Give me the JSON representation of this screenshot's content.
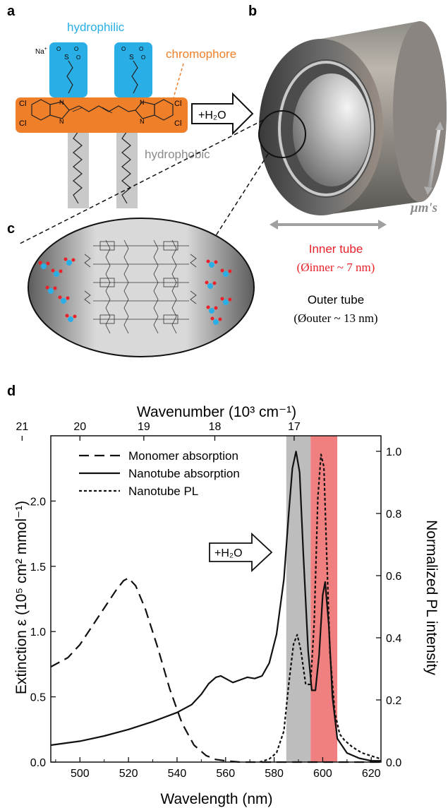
{
  "panels": {
    "a": "a",
    "b": "b",
    "c": "c",
    "d": "d"
  },
  "panel_a": {
    "hydrophilic": "hydrophilic",
    "chromophore": "chromophore",
    "hydrophobic": "hydrophobic",
    "na": "Na",
    "na_sup": "+",
    "cl": "Cl",
    "n": "N",
    "s": "S",
    "o": "O"
  },
  "arrow_label": "+H₂O",
  "panel_b": {
    "length_unit": "μm's",
    "inner_tube": "Inner tube",
    "inner_diam": "(Øinner ~ 7 nm)",
    "outer_tube": "Outer tube",
    "outer_diam": "(Øouter ~ 13 nm)"
  },
  "colors": {
    "hydrophilic": "#2aaee6",
    "chromophore": "#f07f2a",
    "hydrophobic": "#c9c9c9",
    "inner_red": "#e8212a",
    "gray_band": "#bdbdbd",
    "red_band": "#f08080"
  },
  "chart_data": {
    "type": "line",
    "xlabel": "Wavelength (nm)",
    "top_label": "Wavenumber (10³ cm⁻¹)",
    "ylabel": "Extinction ε (10⁵ cm² mmol⁻¹)",
    "y2label": "Normalized PL intensity",
    "xlim": [
      488,
      624
    ],
    "ylim": [
      0,
      2.5
    ],
    "y2lim": [
      0,
      1.05
    ],
    "x_ticks": [
      500,
      520,
      540,
      560,
      580,
      600,
      620
    ],
    "y_ticks": [
      0.0,
      0.5,
      1.0,
      1.5,
      2.0
    ],
    "y_tick_labels": [
      "0.0",
      "0.5",
      "1.0",
      "1.5",
      "2.0"
    ],
    "y2_ticks": [
      0.0,
      0.2,
      0.4,
      0.6,
      0.8,
      1.0
    ],
    "y2_tick_labels": [
      "0.0",
      "0.2",
      "0.4",
      "0.6",
      "0.8",
      "1.0"
    ],
    "top_ticks": [
      21,
      20,
      19,
      18,
      17
    ],
    "bands": [
      {
        "from": 585,
        "to": 595,
        "color": "#bdbdbd"
      },
      {
        "from": 595,
        "to": 606,
        "color": "#f08080"
      }
    ],
    "series": [
      {
        "name": "Monomer absorption",
        "style": "dashed",
        "axis": "left",
        "x": [
          488,
          495,
          500,
          505,
          510,
          515,
          518,
          520,
          523,
          527,
          532,
          537,
          542,
          547,
          552,
          556,
          560,
          566,
          572,
          580,
          590,
          600,
          624
        ],
        "y": [
          0.73,
          0.8,
          0.9,
          1.04,
          1.18,
          1.32,
          1.39,
          1.41,
          1.35,
          1.17,
          0.88,
          0.56,
          0.3,
          0.13,
          0.05,
          0.02,
          0.01,
          0.0,
          0.0,
          0.0,
          0.0,
          0.0,
          0.0
        ]
      },
      {
        "name": "Nanotube absorption",
        "style": "solid",
        "axis": "left",
        "x": [
          488,
          500,
          510,
          520,
          530,
          540,
          546,
          550,
          553,
          556,
          558,
          560,
          563,
          566,
          569,
          572,
          575,
          578,
          581,
          584,
          586,
          587.5,
          589,
          590.5,
          592,
          594,
          595.5,
          597,
          598.5,
          600,
          601,
          602.5,
          604,
          606,
          610,
          615,
          620,
          624
        ],
        "y": [
          0.13,
          0.16,
          0.2,
          0.25,
          0.31,
          0.38,
          0.44,
          0.52,
          0.6,
          0.65,
          0.66,
          0.64,
          0.61,
          0.63,
          0.65,
          0.64,
          0.66,
          0.76,
          0.98,
          1.4,
          1.9,
          2.25,
          2.38,
          2.22,
          1.6,
          0.85,
          0.55,
          0.55,
          0.82,
          1.28,
          1.38,
          1.05,
          0.5,
          0.18,
          0.07,
          0.03,
          0.01,
          0.01
        ]
      },
      {
        "name": "Nanotube PL",
        "style": "dotted",
        "axis": "right",
        "x": [
          574,
          578,
          581,
          584,
          586,
          588,
          589.5,
          591,
          593,
          595,
          596.5,
          598,
          599.3,
          600.5,
          601.5,
          603,
          605,
          607,
          609,
          612,
          616,
          620,
          624
        ],
        "y": [
          0.0,
          0.01,
          0.03,
          0.1,
          0.25,
          0.38,
          0.41,
          0.36,
          0.25,
          0.25,
          0.45,
          0.85,
          0.99,
          0.95,
          0.7,
          0.35,
          0.16,
          0.09,
          0.07,
          0.05,
          0.03,
          0.02,
          0.01
        ]
      }
    ],
    "legend": "top-left",
    "annotation": "+H₂O"
  }
}
